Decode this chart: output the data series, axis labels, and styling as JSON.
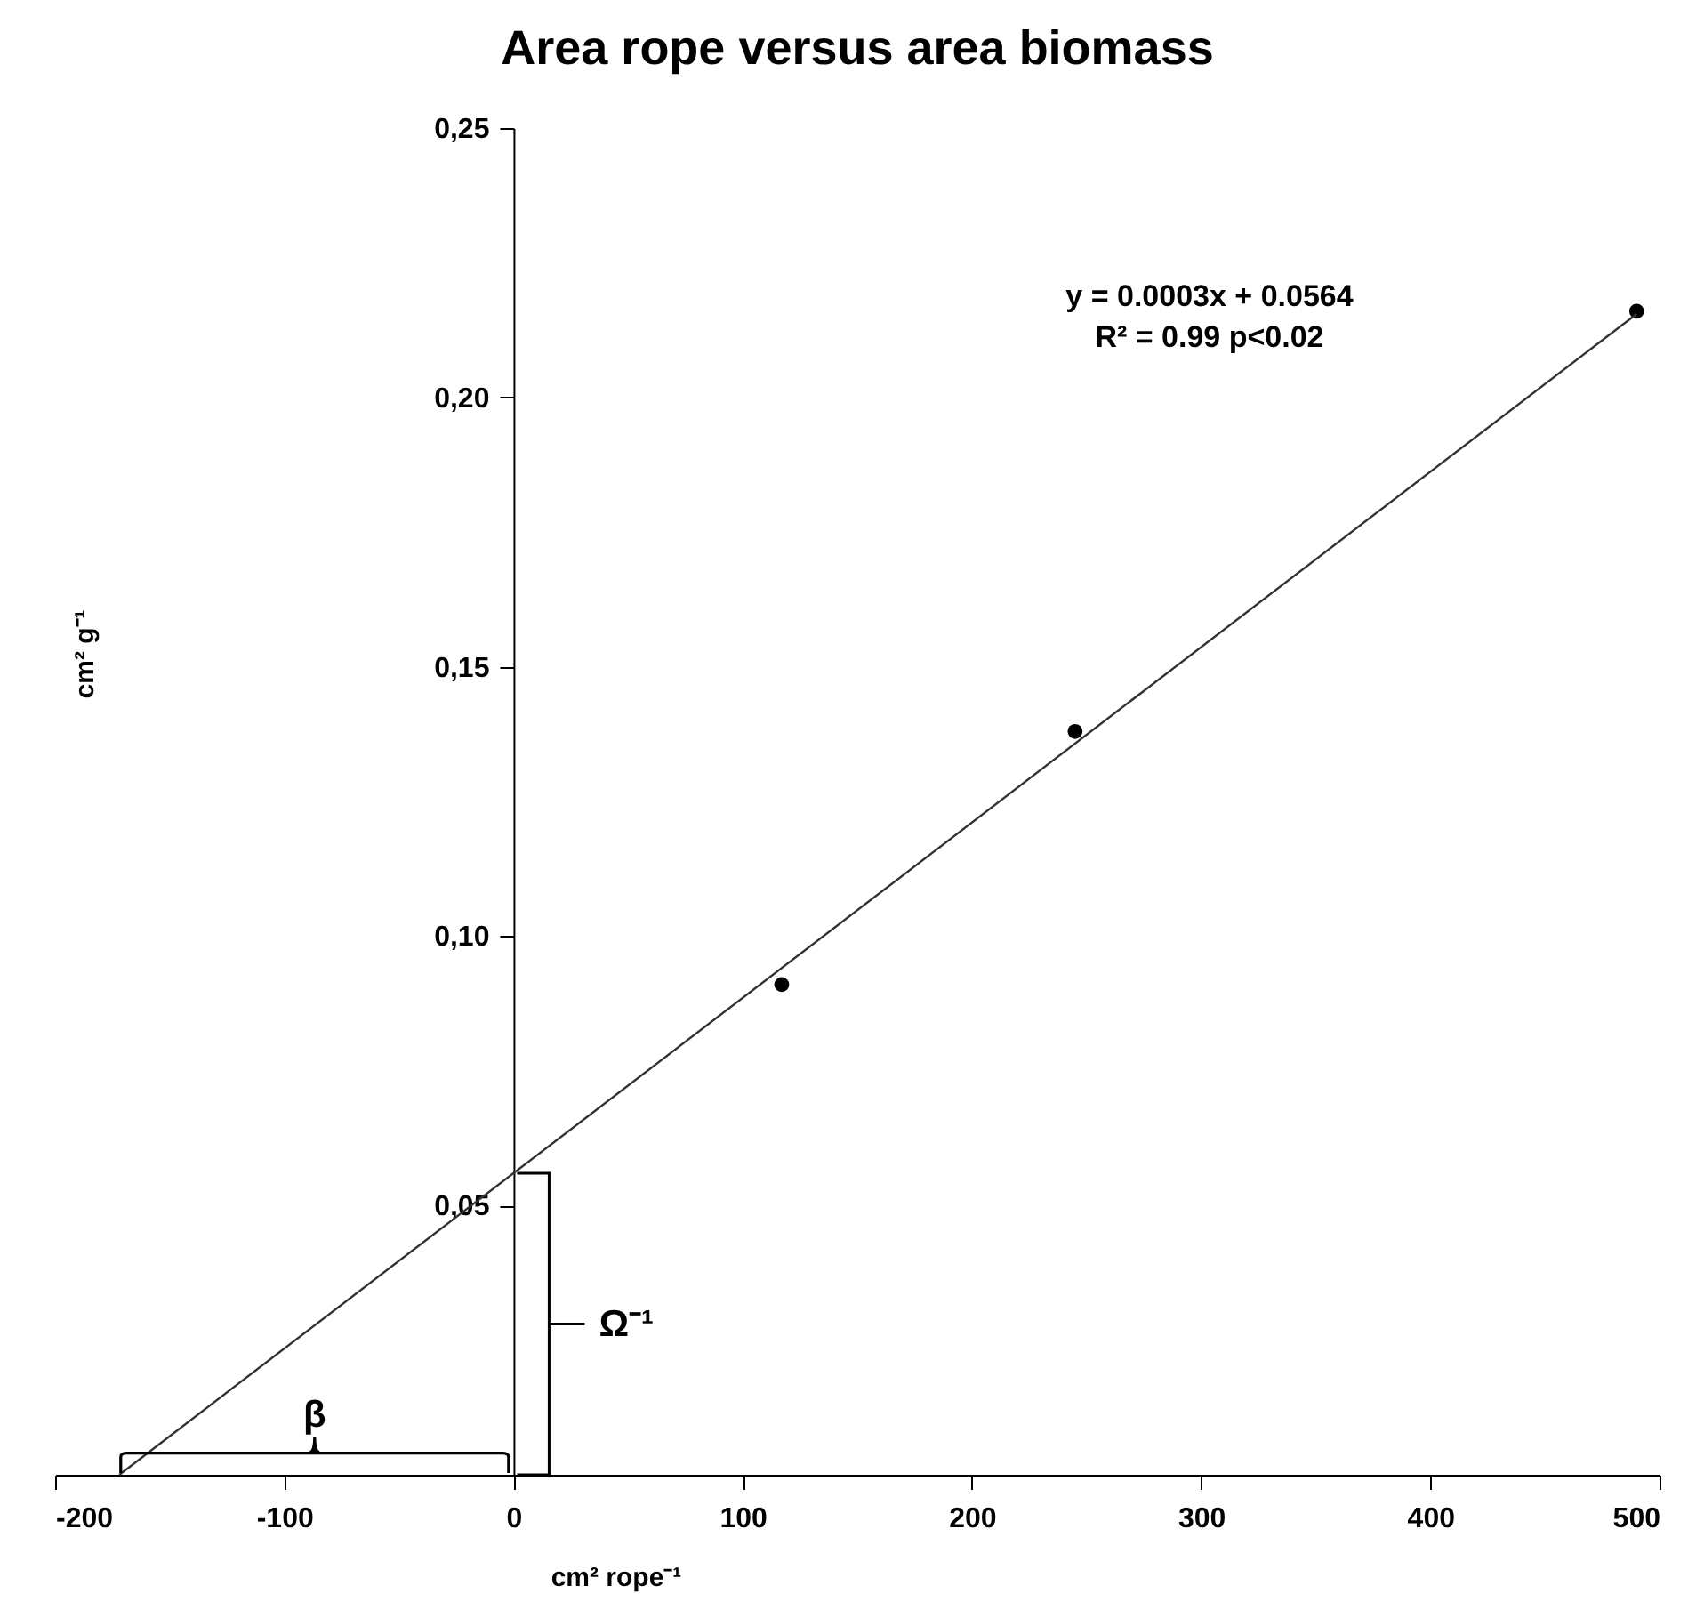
{
  "chart_data": {
    "type": "scatter",
    "title": "Area rope versus area biomass",
    "xlabel": "cm² rope⁻¹",
    "ylabel": "cm² g⁻¹",
    "xlim": [
      -200,
      500
    ],
    "xticks": [
      -200,
      -100,
      0,
      100,
      200,
      300,
      400,
      500
    ],
    "ylim": [
      0,
      0.25
    ],
    "yticks": [
      {
        "value": 0.05,
        "label": "0,05"
      },
      {
        "value": 0.1,
        "label": "0,10"
      },
      {
        "value": 0.15,
        "label": "0,15"
      },
      {
        "value": 0.2,
        "label": "0,20"
      },
      {
        "value": 0.25,
        "label": "0,25"
      }
    ],
    "grid": false,
    "series": [
      {
        "color": "#000000",
        "x": [
          117,
          245,
          490
        ],
        "values": [
          0.091,
          0.138,
          0.216
        ]
      },
      {
        "type": "line",
        "color": "#333333",
        "x": [
          -172,
          490
        ],
        "values": [
          0,
          0.2155
        ]
      }
    ],
    "annotations": [
      "y = 0.0003x + 0.0564",
      "R² = 0.99 p<0.02",
      "β",
      "Ω⁻¹"
    ]
  }
}
